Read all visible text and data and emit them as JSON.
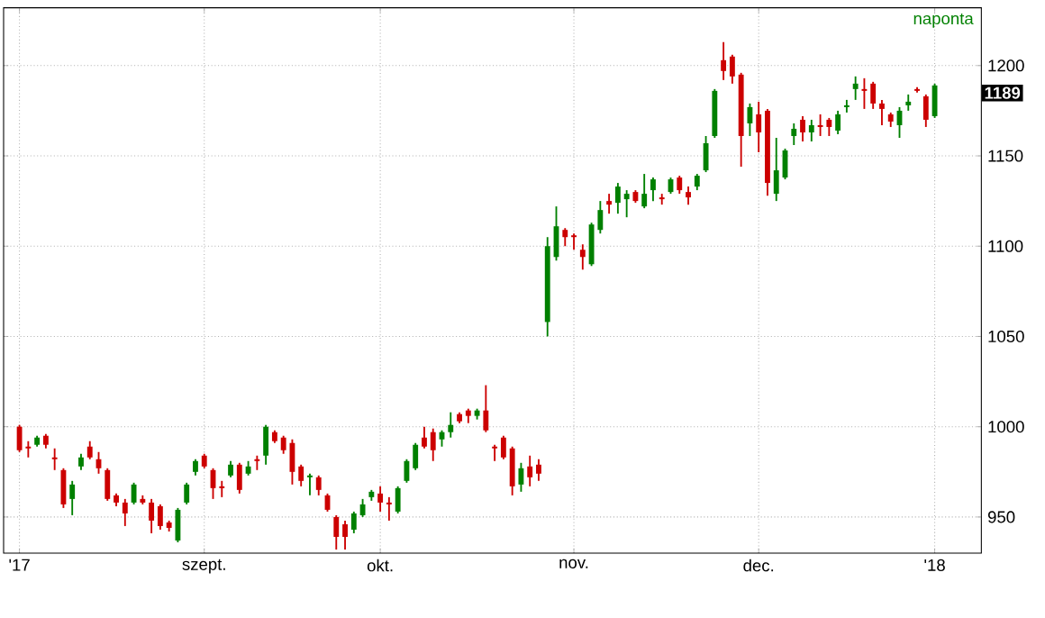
{
  "chart_data": {
    "type": "candlestick",
    "categories": [
      "'17",
      null,
      null,
      null,
      null,
      null,
      null,
      null,
      null,
      null,
      null,
      null,
      null,
      null,
      null,
      null,
      null,
      null,
      null,
      null,
      null,
      "szept.",
      null,
      null,
      null,
      null,
      null,
      null,
      null,
      null,
      null,
      null,
      null,
      null,
      null,
      null,
      null,
      null,
      null,
      null,
      null,
      "okt.",
      null,
      null,
      null,
      null,
      null,
      null,
      null,
      null,
      null,
      null,
      null,
      null,
      null,
      null,
      null,
      null,
      null,
      null,
      null,
      null,
      null,
      "nov.",
      null,
      null,
      null,
      null,
      null,
      null,
      null,
      null,
      null,
      null,
      null,
      null,
      null,
      null,
      null,
      null,
      null,
      null,
      null,
      null,
      "dec.",
      null,
      null,
      null,
      null,
      null,
      null,
      null,
      null,
      null,
      null,
      null,
      null,
      null,
      null,
      null,
      null,
      null,
      null,
      null,
      "'18"
    ],
    "ohlc": [
      [
        1000,
        1001,
        986,
        987
      ],
      [
        989,
        992,
        983,
        988
      ],
      [
        990,
        995,
        989,
        994
      ],
      [
        995,
        996,
        988,
        990
      ],
      [
        983,
        988,
        976,
        982
      ],
      [
        976,
        977,
        955,
        957
      ],
      [
        960,
        970,
        951,
        968
      ],
      [
        978,
        985,
        976,
        983
      ],
      [
        989,
        992,
        982,
        983
      ],
      [
        982,
        986,
        974,
        977
      ],
      [
        976,
        977,
        959,
        960
      ],
      [
        962,
        963,
        956,
        958
      ],
      [
        958,
        960,
        945,
        952
      ],
      [
        958,
        969,
        957,
        968
      ],
      [
        960,
        962,
        957,
        958
      ],
      [
        958,
        960,
        941,
        948
      ],
      [
        956,
        957,
        943,
        945
      ],
      [
        947,
        948,
        942,
        944
      ],
      [
        937,
        955,
        936,
        954
      ],
      [
        958,
        969,
        957,
        968
      ],
      [
        975,
        982,
        973,
        981
      ],
      [
        984,
        985,
        977,
        978
      ],
      [
        976,
        977,
        960,
        966
      ],
      [
        967,
        970,
        961,
        966
      ],
      [
        973,
        981,
        972,
        979
      ],
      [
        979,
        980,
        963,
        965
      ],
      [
        974,
        981,
        973,
        978
      ],
      [
        982,
        984,
        976,
        981
      ],
      [
        984,
        1001,
        979,
        1000
      ],
      [
        997,
        998,
        991,
        992
      ],
      [
        994,
        995,
        985,
        987
      ],
      [
        991,
        993,
        968,
        975
      ],
      [
        978,
        979,
        967,
        970
      ],
      [
        972,
        974,
        962,
        973
      ],
      [
        972,
        973,
        962,
        965
      ],
      [
        962,
        963,
        953,
        954
      ],
      [
        950,
        951,
        932,
        939
      ],
      [
        946,
        948,
        932,
        939
      ],
      [
        943,
        953,
        941,
        952
      ],
      [
        951,
        960,
        950,
        957
      ],
      [
        961,
        965,
        959,
        964
      ],
      [
        963,
        967,
        953,
        958
      ],
      [
        958,
        961,
        948,
        957
      ],
      [
        953,
        967,
        952,
        966
      ],
      [
        970,
        982,
        969,
        981
      ],
      [
        977,
        991,
        976,
        990
      ],
      [
        994,
        1000,
        988,
        989
      ],
      [
        997,
        999,
        981,
        987
      ],
      [
        993,
        998,
        989,
        997
      ],
      [
        997,
        1008,
        994,
        1001
      ],
      [
        1007,
        1008,
        1002,
        1003
      ],
      [
        1009,
        1010,
        1002,
        1006
      ],
      [
        1006,
        1010,
        1004,
        1009
      ],
      [
        1009,
        1023,
        997,
        998
      ],
      [
        989,
        990,
        981,
        988
      ],
      [
        994,
        995,
        982,
        983
      ],
      [
        988,
        989,
        962,
        967
      ],
      [
        968,
        980,
        964,
        977
      ],
      [
        978,
        984,
        967,
        972
      ],
      [
        979,
        982,
        970,
        974
      ],
      [
        1058,
        1105,
        1050,
        1100
      ],
      [
        1094,
        1122,
        1092,
        1111
      ],
      [
        1109,
        1110,
        1100,
        1105
      ],
      [
        1106,
        1107,
        1098,
        1105
      ],
      [
        1098,
        1101,
        1087,
        1094
      ],
      [
        1090,
        1113,
        1089,
        1112
      ],
      [
        1109,
        1125,
        1107,
        1120
      ],
      [
        1125,
        1129,
        1118,
        1123
      ],
      [
        1124,
        1135,
        1118,
        1133
      ],
      [
        1126,
        1131,
        1116,
        1129
      ],
      [
        1130,
        1131,
        1124,
        1125
      ],
      [
        1122,
        1140,
        1121,
        1129
      ],
      [
        1131,
        1138,
        1125,
        1137
      ],
      [
        1127,
        1129,
        1123,
        1126
      ],
      [
        1130,
        1138,
        1129,
        1137
      ],
      [
        1138,
        1139,
        1129,
        1131
      ],
      [
        1130,
        1133,
        1123,
        1127
      ],
      [
        1133,
        1140,
        1131,
        1139
      ],
      [
        1142,
        1161,
        1141,
        1157
      ],
      [
        1161,
        1187,
        1160,
        1186
      ],
      [
        1203,
        1213,
        1192,
        1197
      ],
      [
        1205,
        1206,
        1190,
        1194
      ],
      [
        1195,
        1196,
        1144,
        1161
      ],
      [
        1168,
        1179,
        1161,
        1177
      ],
      [
        1173,
        1180,
        1152,
        1163
      ],
      [
        1175,
        1176,
        1128,
        1135
      ],
      [
        1129,
        1160,
        1125,
        1142
      ],
      [
        1138,
        1154,
        1137,
        1153
      ],
      [
        1161,
        1168,
        1156,
        1165
      ],
      [
        1170,
        1172,
        1158,
        1163
      ],
      [
        1163,
        1170,
        1158,
        1167
      ],
      [
        1167,
        1173,
        1161,
        1166
      ],
      [
        1170,
        1171,
        1161,
        1166
      ],
      [
        1164,
        1175,
        1162,
        1173
      ],
      [
        1177,
        1181,
        1174,
        1178
      ],
      [
        1187,
        1194,
        1181,
        1190
      ],
      [
        1187,
        1193,
        1176,
        1186
      ],
      [
        1190,
        1191,
        1176,
        1179
      ],
      [
        1179,
        1181,
        1167,
        1176
      ],
      [
        1173,
        1174,
        1166,
        1169
      ],
      [
        1167,
        1177,
        1160,
        1175
      ],
      [
        1178,
        1184,
        1175,
        1180
      ],
      [
        1187,
        1188,
        1185,
        1186
      ],
      [
        1183,
        1184,
        1166,
        1170
      ],
      [
        1172,
        1190,
        1171,
        1189
      ]
    ],
    "colors": [
      "#cc0000",
      "#cc0000",
      "#008000",
      "#cc0000",
      "#cc0000",
      "#cc0000",
      "#008000",
      "#008000",
      "#cc0000",
      "#cc0000",
      "#cc0000",
      "#cc0000",
      "#cc0000",
      "#008000",
      "#cc0000",
      "#cc0000",
      "#cc0000",
      "#cc0000",
      "#008000",
      "#008000",
      "#008000",
      "#cc0000",
      "#cc0000",
      "#cc0000",
      "#008000",
      "#cc0000",
      "#008000",
      "#cc0000",
      "#008000",
      "#cc0000",
      "#cc0000",
      "#cc0000",
      "#cc0000",
      "#008000",
      "#cc0000",
      "#cc0000",
      "#cc0000",
      "#cc0000",
      "#008000",
      "#008000",
      "#008000",
      "#cc0000",
      "#cc0000",
      "#008000",
      "#008000",
      "#008000",
      "#cc0000",
      "#cc0000",
      "#008000",
      "#008000",
      "#cc0000",
      "#cc0000",
      "#008000",
      "#cc0000",
      "#cc0000",
      "#cc0000",
      "#cc0000",
      "#008000",
      "#cc0000",
      "#cc0000",
      "#008000",
      "#008000",
      "#cc0000",
      "#cc0000",
      "#cc0000",
      "#008000",
      "#008000",
      "#cc0000",
      "#008000",
      "#008000",
      "#cc0000",
      "#008000",
      "#008000",
      "#cc0000",
      "#008000",
      "#cc0000",
      "#cc0000",
      "#008000",
      "#008000",
      "#008000",
      "#cc0000",
      "#cc0000",
      "#cc0000",
      "#008000",
      "#cc0000",
      "#cc0000",
      "#008000",
      "#008000",
      "#008000",
      "#cc0000",
      "#008000",
      "#cc0000",
      "#cc0000",
      "#008000",
      "#008000",
      "#008000",
      "#cc0000",
      "#cc0000",
      "#cc0000",
      "#cc0000",
      "#008000",
      "#008000",
      "#cc0000",
      "#cc0000",
      "#008000"
    ],
    "ylim": [
      930,
      1232
    ],
    "yticks": [
      950,
      1000,
      1050,
      1100,
      1150,
      1200
    ],
    "grid": true,
    "annotations": [
      "naponta",
      "1189"
    ]
  }
}
